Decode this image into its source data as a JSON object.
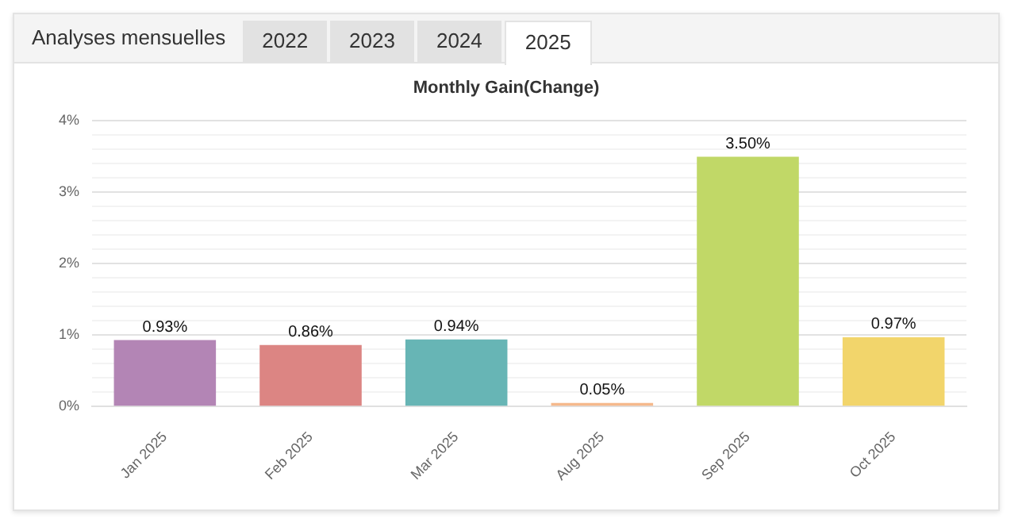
{
  "chart_data": {
    "type": "bar",
    "title": "Monthly Gain(Change)",
    "categories": [
      "Jan 2025",
      "Feb 2025",
      "Mar 2025",
      "Aug 2025",
      "Sep 2025",
      "Oct 2025"
    ],
    "values": [
      0.93,
      0.86,
      0.94,
      0.05,
      3.5,
      0.97
    ],
    "value_labels": [
      "0.93%",
      "0.86%",
      "0.94%",
      "0.05%",
      "3.50%",
      "0.97%"
    ],
    "colors": [
      "#b385b5",
      "#dc8583",
      "#67b5b5",
      "#f5b98c",
      "#c1d867",
      "#f2d56b"
    ],
    "ylim": [
      0,
      4
    ],
    "yticks": [
      {
        "value": 0,
        "label": "0%"
      },
      {
        "value": 0.2,
        "label": null
      },
      {
        "value": 0.4,
        "label": null
      },
      {
        "value": 0.6,
        "label": null
      },
      {
        "value": 0.8,
        "label": null
      },
      {
        "value": 1,
        "label": "1%"
      },
      {
        "value": 1.2,
        "label": null
      },
      {
        "value": 1.4,
        "label": null
      },
      {
        "value": 1.6,
        "label": null
      },
      {
        "value": 1.8,
        "label": null
      },
      {
        "value": 2,
        "label": "2%"
      },
      {
        "value": 2.2,
        "label": null
      },
      {
        "value": 2.4,
        "label": null
      },
      {
        "value": 2.6,
        "label": null
      },
      {
        "value": 2.8,
        "label": null
      },
      {
        "value": 3,
        "label": "3%"
      },
      {
        "value": 3.2,
        "label": null
      },
      {
        "value": 3.4,
        "label": null
      },
      {
        "value": 3.6,
        "label": null
      },
      {
        "value": 3.8,
        "label": null
      },
      {
        "value": 4,
        "label": "4%"
      }
    ],
    "grid": "y",
    "legend": false,
    "annotations": [
      "Analyses mensuelles",
      "2022",
      "2023",
      "2024",
      "2025"
    ]
  }
}
